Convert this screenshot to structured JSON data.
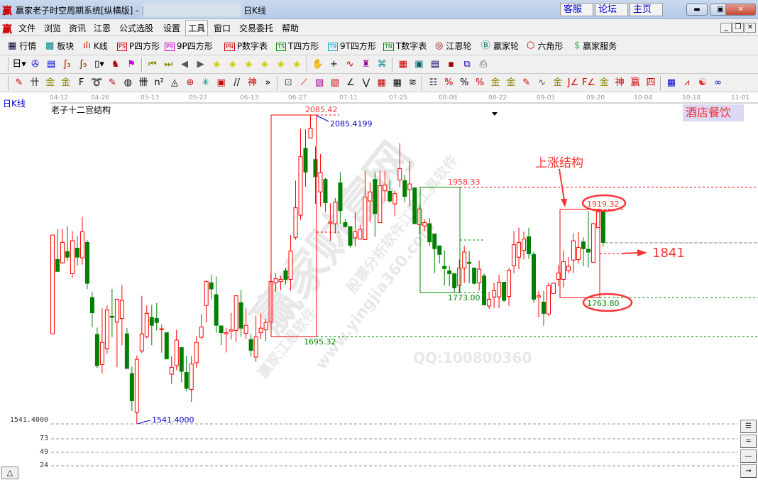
{
  "window": {
    "title": "赢家老子时空周期系统[纵横版] - [",
    "title_suffix": "日K线",
    "logo": "赢",
    "links": [
      "客服",
      "论坛",
      "主页"
    ],
    "controls": [
      "minimize",
      "maximize",
      "close"
    ]
  },
  "menu": {
    "logo": "赢",
    "items": [
      "文件",
      "浏览",
      "资讯",
      "江恩",
      "公式选股",
      "设置",
      "工具",
      "窗口",
      "交易委托",
      "帮助"
    ],
    "active": "工具"
  },
  "toolbar1": [
    {
      "label": "行情",
      "icon": "quote-table-icon"
    },
    {
      "label": "板块",
      "icon": "sector-grid-icon"
    },
    {
      "label": "K线",
      "icon": "kline-icon"
    },
    {
      "label": "P四方形",
      "icon": "ps-icon",
      "badge": "PS",
      "color": "#cc0000"
    },
    {
      "label": "9P四方形",
      "icon": "p9-icon",
      "badge": "P9",
      "color": "#cc00cc"
    },
    {
      "label": "P数字表",
      "icon": "pn-icon",
      "badge": "PN",
      "color": "#cc0000"
    },
    {
      "label": "T四方形",
      "icon": "ts-icon",
      "badge": "TS",
      "color": "#008800"
    },
    {
      "label": "9T四方形",
      "icon": "t9-icon",
      "badge": "T9",
      "color": "#00aacc"
    },
    {
      "label": "T数字表",
      "icon": "tn-icon",
      "badge": "TN",
      "color": "#008800"
    },
    {
      "label": "江恩轮",
      "icon": "gann-wheel-icon"
    },
    {
      "label": "赢家轮",
      "icon": "winner-wheel-icon"
    },
    {
      "label": "六角形",
      "icon": "hexagon-icon"
    },
    {
      "label": "赢家服务",
      "icon": "dollar-icon"
    }
  ],
  "toolbar2": [
    {
      "n": "period-select-icon",
      "g": "日▾",
      "c": "#000"
    },
    {
      "n": "link-icon",
      "g": "✇",
      "c": "#00c"
    },
    {
      "n": "clipboard-icon",
      "g": "▤",
      "c": "#00c"
    },
    {
      "n": "indicator3-icon",
      "g": "ʃ₃",
      "c": "#a00"
    },
    {
      "n": "indicator9-icon",
      "g": "ʃ₉",
      "c": "#a00"
    },
    {
      "n": "candle-type-icon",
      "g": "▯▾",
      "c": "#000"
    },
    {
      "n": "weight-icon",
      "g": "♞",
      "c": "#a00"
    },
    {
      "n": "flag-icon",
      "g": "⚑",
      "c": "#c0c"
    },
    {
      "n": "first-icon",
      "g": "⏮",
      "c": "#880"
    },
    {
      "n": "last-icon",
      "g": "⏭",
      "c": "#880"
    },
    {
      "n": "prev-icon",
      "g": "◀",
      "c": "#555"
    },
    {
      "n": "next-icon",
      "g": "▶",
      "c": "#555"
    },
    {
      "n": "move-left-icon",
      "g": "◈",
      "c": "#cc0"
    },
    {
      "n": "move-right-icon",
      "g": "◈",
      "c": "#cc0"
    },
    {
      "n": "move-h-icon",
      "g": "◈",
      "c": "#cc0"
    },
    {
      "n": "zoom-in-icon",
      "g": "◈",
      "c": "#cc0"
    },
    {
      "n": "zoom-out-icon",
      "g": "◈",
      "c": "#cc0"
    },
    {
      "n": "move-all-icon",
      "g": "◈",
      "c": "#cc0"
    },
    {
      "n": "hand-icon",
      "g": "✋",
      "c": "#000"
    },
    {
      "n": "crosshair-icon",
      "g": "+",
      "c": "#000"
    },
    {
      "n": "line-draw-icon",
      "g": "∿",
      "c": "#c00"
    },
    {
      "n": "tower-icon",
      "g": "♜",
      "c": "#909"
    },
    {
      "n": "map-icon",
      "g": "⌘",
      "c": "#088"
    },
    {
      "n": "calendar-icon",
      "g": "▦",
      "c": "#c00"
    },
    {
      "n": "calculator-icon",
      "g": "▣",
      "c": "#066"
    },
    {
      "n": "document-icon",
      "g": "▤",
      "c": "#006"
    },
    {
      "n": "save-icon",
      "g": "▪",
      "c": "#a00"
    },
    {
      "n": "network-icon",
      "g": "⧉",
      "c": "#00a"
    },
    {
      "n": "print-icon",
      "g": "⎙",
      "c": "#444"
    }
  ],
  "toolbar3": [
    {
      "n": "pen-icon",
      "g": "✎",
      "c": "#c00"
    },
    {
      "n": "grid-lines-icon",
      "g": "卄",
      "c": "#000"
    },
    {
      "n": "gold-line-icon",
      "g": "金",
      "c": "#880"
    },
    {
      "n": "gold-line2-icon",
      "g": "金",
      "c": "#880"
    },
    {
      "n": "fib-icon",
      "g": "F",
      "c": "#000"
    },
    {
      "n": "spiral-icon",
      "g": "➰",
      "c": "#000"
    },
    {
      "n": "pen-ruler-icon",
      "g": "✎",
      "c": "#c00"
    },
    {
      "n": "circle-ruler-icon",
      "g": "◍",
      "c": "#000"
    },
    {
      "n": "parallel-icon",
      "g": "卌",
      "c": "#000"
    },
    {
      "n": "square-n-icon",
      "g": "n²",
      "c": "#000"
    },
    {
      "n": "triangle-icon",
      "g": "◬",
      "c": "#000"
    },
    {
      "n": "circle-cross-icon",
      "g": "⊕",
      "c": "#c00"
    },
    {
      "n": "web-icon",
      "g": "✳",
      "c": "#088"
    },
    {
      "n": "square-web-icon",
      "g": "▣",
      "c": "#c00"
    },
    {
      "n": "lines-icon",
      "g": "//",
      "c": "#000"
    },
    {
      "n": "god-line-icon",
      "g": "神",
      "c": "#c00"
    },
    {
      "n": "more-icon",
      "g": "»",
      "c": "#000"
    },
    {
      "n": "box-icon",
      "g": "⊡",
      "c": "#555"
    },
    {
      "n": "fan-icon",
      "g": "⟋",
      "c": "#c00"
    },
    {
      "n": "fan-box-icon",
      "g": "▨",
      "c": "#909"
    },
    {
      "n": "fan-box2-icon",
      "g": "▧",
      "c": "#c00"
    },
    {
      "n": "angle-fan-icon",
      "g": "∠",
      "c": "#000"
    },
    {
      "n": "wave-icon",
      "g": "⋁",
      "c": "#000"
    },
    {
      "n": "grid-box-icon",
      "g": "▦",
      "c": "#c00"
    },
    {
      "n": "grid-arrow-icon",
      "g": "▦",
      "c": "#000"
    },
    {
      "n": "channel-icon",
      "g": "≋",
      "c": "#000"
    },
    {
      "n": "ladder-icon",
      "g": "☷",
      "c": "#000"
    },
    {
      "n": "percent-line-icon",
      "g": "%",
      "c": "#c00"
    },
    {
      "n": "percent-icon",
      "g": "%",
      "c": "#000"
    },
    {
      "n": "percent-lines-icon",
      "g": "%",
      "c": "#c00"
    },
    {
      "n": "gold-circle-icon",
      "g": "金",
      "c": "#880"
    },
    {
      "n": "gold-lines-icon",
      "g": "金",
      "c": "#880"
    },
    {
      "n": "pen-lines-icon",
      "g": "✎",
      "c": "#c00"
    },
    {
      "n": "sine-icon",
      "g": "∿",
      "c": "#555"
    },
    {
      "n": "gold-bar-icon",
      "g": "金",
      "c": "#880"
    },
    {
      "n": "j-fan-icon",
      "g": "J∠",
      "c": "#c00"
    },
    {
      "n": "f-fan-icon",
      "g": "F∠",
      "c": "#c00"
    },
    {
      "n": "gold-fan-icon",
      "g": "金",
      "c": "#880"
    },
    {
      "n": "god-fan-icon",
      "g": "神",
      "c": "#c00"
    },
    {
      "n": "win-fan-icon",
      "g": "赢",
      "c": "#c00"
    },
    {
      "n": "four-fan-icon",
      "g": "四",
      "c": "#c00"
    },
    {
      "n": "grid-table-icon",
      "g": "▦",
      "c": "#00c"
    },
    {
      "n": "chart-line-icon",
      "g": "⩘",
      "c": "#c00"
    },
    {
      "n": "taiji-icon",
      "g": "☯",
      "c": "#e22"
    },
    {
      "n": "infinity-icon",
      "g": "∞",
      "c": "#00a"
    }
  ],
  "chart": {
    "period_label": "日K线",
    "structure_name": "老子十二宫结构",
    "sector": "酒店餐饮",
    "dates": [
      "04-12",
      "04-26",
      "05-13",
      "05-27",
      "06-13",
      "06-27",
      "07-11",
      "07-25",
      "08-08",
      "08-22",
      "09-05",
      "09-20",
      "10-04",
      "10-18",
      "11-01"
    ],
    "axis_labels": [
      "1541.4000",
      "73",
      "49",
      "24"
    ],
    "up_color": "#ff0000",
    "down_color": "#008000",
    "annotations": {
      "box1_high": "2085.42",
      "box1_high_marker": "2085.4199",
      "box1_low": "1695.32",
      "box2_high": "1958.33",
      "box2_low": "1773.00",
      "box3_high": "1919.32",
      "box3_low": "1763.80",
      "low_marker": "1541.4000",
      "rise_structure": "上涨结构",
      "target": "1841"
    },
    "watermark": [
      "赢家财富网",
      "股票分析软件江恩工具软件",
      "赢家江恩软件",
      "www.yingjia360.com",
      "QQ:100800360"
    ]
  },
  "chart_data": {
    "type": "candlestick",
    "fields": [
      "open",
      "high",
      "low",
      "close"
    ],
    "ohlc": [
      [
        1700,
        1874,
        1700,
        1874
      ],
      [
        1831,
        1884,
        1809,
        1810
      ],
      [
        1825,
        1885,
        1824,
        1861
      ],
      [
        1845,
        1890,
        1829,
        1835
      ],
      [
        1806,
        1881,
        1799,
        1864
      ],
      [
        1851,
        1872,
        1820,
        1835
      ],
      [
        1834,
        1906,
        1822,
        1880
      ],
      [
        1861,
        1865,
        1779,
        1789
      ],
      [
        1764,
        1774,
        1712,
        1737
      ],
      [
        1699,
        1711,
        1640,
        1644
      ],
      [
        1646,
        1745,
        1630,
        1685
      ],
      [
        1674,
        1750,
        1665,
        1742
      ],
      [
        1731,
        1779,
        1694,
        1729
      ],
      [
        1721,
        1761,
        1641,
        1761
      ],
      [
        1727,
        1786,
        1680,
        1759
      ],
      [
        1700,
        1710,
        1639,
        1639
      ],
      [
        1630,
        1642,
        1564,
        1582
      ],
      [
        1562,
        1662,
        1541.4,
        1655
      ],
      [
        1670,
        1767,
        1666,
        1700
      ],
      [
        1695,
        1750,
        1692,
        1736
      ],
      [
        1729,
        1751,
        1680,
        1715
      ],
      [
        1727,
        1754,
        1706,
        1720
      ],
      [
        1708,
        1716,
        1667,
        1709
      ],
      [
        1702,
        1702,
        1655,
        1656
      ],
      [
        1629,
        1661,
        1612,
        1641
      ],
      [
        1644,
        1707,
        1636,
        1689
      ],
      [
        1676,
        1676,
        1615,
        1634
      ],
      [
        1632,
        1661,
        1599,
        1604
      ],
      [
        1602,
        1661,
        1580,
        1647
      ],
      [
        1649,
        1696,
        1640,
        1685
      ],
      [
        1694,
        1735,
        1691,
        1712
      ],
      [
        1750,
        1794,
        1720,
        1792
      ],
      [
        1790,
        1804,
        1762,
        1779
      ],
      [
        1769,
        1801,
        1702,
        1715
      ],
      [
        1714,
        1714,
        1680,
        1702
      ],
      [
        1700,
        1711,
        1667,
        1702
      ],
      [
        1705,
        1737,
        1690,
        1707
      ],
      [
        1706,
        1769,
        1686,
        1767
      ],
      [
        1755,
        1777,
        1695,
        1710
      ],
      [
        1701,
        1745,
        1691,
        1715
      ],
      [
        1690,
        1700,
        1660,
        1671
      ],
      [
        1659,
        1732,
        1651,
        1695
      ],
      [
        1702,
        1736,
        1691,
        1710
      ],
      [
        1707,
        1727,
        1687,
        1720
      ],
      [
        1721,
        1806,
        1721,
        1792
      ],
      [
        1790,
        1807,
        1774,
        1797
      ],
      [
        1792,
        1802,
        1777,
        1796
      ],
      [
        1811,
        1816,
        1787,
        1796
      ],
      [
        1796,
        1874,
        1776,
        1846
      ],
      [
        1870,
        1970,
        1866,
        1922
      ],
      [
        1909,
        2061,
        1901,
        2012
      ],
      [
        2027,
        2060,
        1959,
        1985
      ],
      [
        2045,
        2085.42,
        2045,
        2062
      ],
      [
        2007,
        2030,
        1929,
        1977
      ],
      [
        1950,
        2017,
        1924,
        1984
      ],
      [
        1972,
        1975,
        1915,
        1931
      ],
      [
        1896,
        1930,
        1864,
        1897
      ],
      [
        1894,
        1939,
        1877,
        1932
      ],
      [
        1966,
        1985,
        1894,
        1917
      ],
      [
        1896,
        1902,
        1887,
        1889
      ],
      [
        1889,
        1889,
        1852,
        1856
      ],
      [
        1869,
        1915,
        1854,
        1880
      ],
      [
        1867,
        1892,
        1866,
        1884
      ],
      [
        1866,
        1987,
        1865,
        1941
      ],
      [
        1934,
        1967,
        1897,
        1950
      ],
      [
        1972,
        1985,
        1871,
        1912
      ],
      [
        1896,
        1987,
        1895,
        1961
      ],
      [
        1952,
        1987,
        1934,
        1962
      ],
      [
        1951,
        1970,
        1931,
        1934
      ],
      [
        1929,
        1952,
        1907,
        1947
      ],
      [
        1971,
        2036,
        1959,
        1991
      ],
      [
        1970,
        1980,
        1932,
        1942
      ],
      [
        1954,
        2004,
        1925,
        1964
      ],
      [
        1957,
        1958.33,
        1894,
        1894
      ],
      [
        1892,
        1926,
        1876,
        1920
      ],
      [
        1890,
        1902,
        1881,
        1896
      ],
      [
        1894,
        1904,
        1855,
        1862
      ],
      [
        1876,
        1876,
        1807,
        1850
      ],
      [
        1855,
        1855,
        1824,
        1840
      ],
      [
        1819,
        1847,
        1785,
        1815
      ],
      [
        1811,
        1820,
        1784,
        1806
      ],
      [
        1806,
        1806,
        1773,
        1781
      ],
      [
        1785,
        1831,
        1772,
        1816
      ],
      [
        1816,
        1855,
        1790,
        1844
      ],
      [
        1826,
        1846,
        1789,
        1824
      ],
      [
        1816,
        1816,
        1787,
        1789
      ],
      [
        1790,
        1829,
        1776,
        1814
      ],
      [
        1802,
        1806,
        1750,
        1751
      ],
      [
        1749,
        1774,
        1744,
        1761
      ],
      [
        1765,
        1790,
        1746,
        1776
      ],
      [
        1765,
        1804,
        1745,
        1791
      ],
      [
        1791,
        1791,
        1756,
        1759
      ],
      [
        1766,
        1816,
        1749,
        1812
      ],
      [
        1820,
        1881,
        1807,
        1857
      ],
      [
        1835,
        1887,
        1814,
        1861
      ],
      [
        1847,
        1880,
        1831,
        1867
      ],
      [
        1871,
        1887,
        1832,
        1841
      ],
      [
        1840,
        1844,
        1755,
        1761
      ],
      [
        1765,
        1776,
        1729,
        1767
      ],
      [
        1756,
        1776,
        1714,
        1736
      ],
      [
        1735,
        1790,
        1731,
        1785
      ],
      [
        1771,
        1791,
        1771,
        1789
      ],
      [
        1796,
        1821,
        1784,
        1807
      ],
      [
        1796,
        1847,
        1782,
        1827
      ],
      [
        1811,
        1835,
        1807,
        1819
      ],
      [
        1830,
        1877,
        1807,
        1864
      ],
      [
        1831,
        1879,
        1824,
        1852
      ],
      [
        1862,
        1870,
        1819,
        1850
      ],
      [
        1849,
        1916,
        1817,
        1844
      ],
      [
        1826,
        1896,
        1825,
        1894
      ],
      [
        1887,
        1919.32,
        1887,
        1915
      ],
      [
        1916,
        1916,
        1854,
        1861
      ]
    ],
    "price_levels": [
      2085.42,
      1958.33,
      1919.32,
      1773.0,
      1763.8,
      1695.32,
      1541.4,
      1841
    ],
    "ylim": [
      1541.4,
      2085.42
    ]
  }
}
